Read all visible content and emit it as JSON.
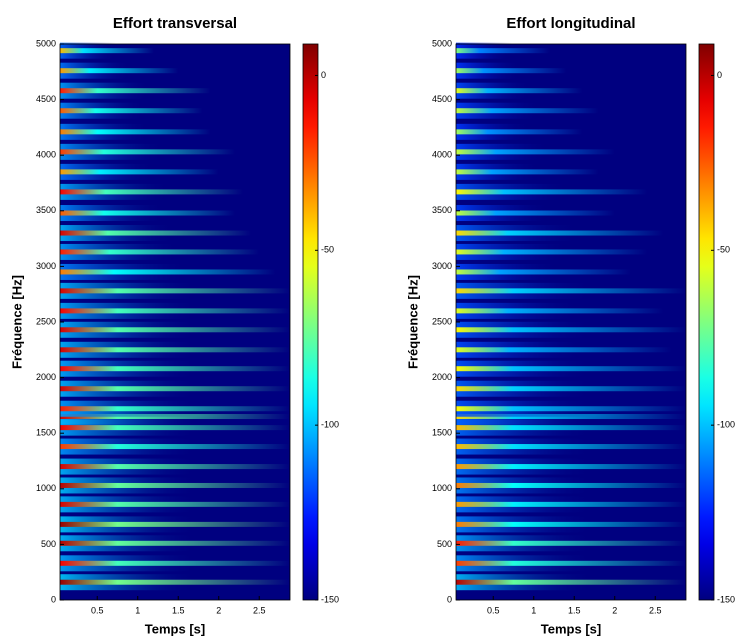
{
  "chart_data": [
    {
      "type": "spectrogram",
      "title": "Effort transversal",
      "xlabel": "Temps [s]",
      "ylabel": "Fréquence [Hz]",
      "xlim": [
        0.04,
        2.88
      ],
      "xticks": [
        0.5,
        1,
        1.5,
        2,
        2.5
      ],
      "ylim": [
        0,
        5000
      ],
      "yticks": [
        0,
        500,
        1000,
        1500,
        2000,
        2500,
        3000,
        3500,
        4000,
        4500,
        5000
      ],
      "clim": [
        -150,
        9
      ],
      "cticks": [
        0,
        -50,
        -100,
        -150
      ],
      "frequencies": [
        160,
        330,
        510,
        680,
        860,
        1030,
        1200,
        1380,
        1550,
        1650,
        1720,
        1900,
        2080,
        2250,
        2430,
        2600,
        2780,
        2950,
        3130,
        3300,
        3480,
        3670,
        3850,
        4030,
        4210,
        4400,
        4580,
        4760,
        4940
      ],
      "levels": [
        5,
        -10,
        0,
        5,
        -5,
        0,
        -5,
        -20,
        -10,
        -5,
        -15,
        -5,
        -10,
        -5,
        -5,
        -10,
        -5,
        -30,
        -15,
        -5,
        -25,
        -10,
        -35,
        -20,
        -30,
        -25,
        -15,
        -35,
        -40
      ],
      "durations": [
        2.88,
        2.88,
        2.88,
        2.88,
        2.88,
        2.88,
        2.88,
        2.88,
        2.88,
        2.88,
        2.88,
        2.88,
        2.88,
        2.88,
        2.88,
        2.88,
        2.88,
        2.7,
        2.5,
        2.4,
        2.2,
        2.3,
        2.0,
        2.2,
        1.9,
        1.8,
        1.9,
        1.5,
        1.2
      ]
    },
    {
      "type": "spectrogram",
      "title": "Effort longitudinal",
      "xlabel": "Temps [s]",
      "ylabel": "Fréquence [Hz]",
      "xlim": [
        0.04,
        2.88
      ],
      "xticks": [
        0.5,
        1,
        1.5,
        2,
        2.5
      ],
      "ylim": [
        0,
        5000
      ],
      "yticks": [
        0,
        500,
        1000,
        1500,
        2000,
        2500,
        3000,
        3500,
        4000,
        4500,
        5000
      ],
      "clim": [
        -150,
        9
      ],
      "cticks": [
        0,
        -50,
        -100,
        -150
      ],
      "frequencies": [
        160,
        330,
        510,
        680,
        860,
        1030,
        1200,
        1380,
        1550,
        1650,
        1720,
        1900,
        2080,
        2250,
        2430,
        2600,
        2780,
        2950,
        3130,
        3300,
        3480,
        3670,
        3850,
        4030,
        4210,
        4400,
        4580,
        4760,
        4940
      ],
      "levels": [
        0,
        -20,
        -15,
        -30,
        -35,
        -30,
        -35,
        -40,
        -40,
        -45,
        -50,
        -45,
        -50,
        -55,
        -50,
        -55,
        -45,
        -60,
        -55,
        -45,
        -60,
        -50,
        -60,
        -60,
        -65,
        -60,
        -55,
        -65,
        -70
      ],
      "durations": [
        2.88,
        2.88,
        2.88,
        2.88,
        2.88,
        2.88,
        2.88,
        2.88,
        2.88,
        2.88,
        2.88,
        2.88,
        2.88,
        2.7,
        2.88,
        2.6,
        2.88,
        2.2,
        2.4,
        2.6,
        2.0,
        2.4,
        1.8,
        2.0,
        1.6,
        1.8,
        1.6,
        1.4,
        1.2
      ]
    }
  ]
}
